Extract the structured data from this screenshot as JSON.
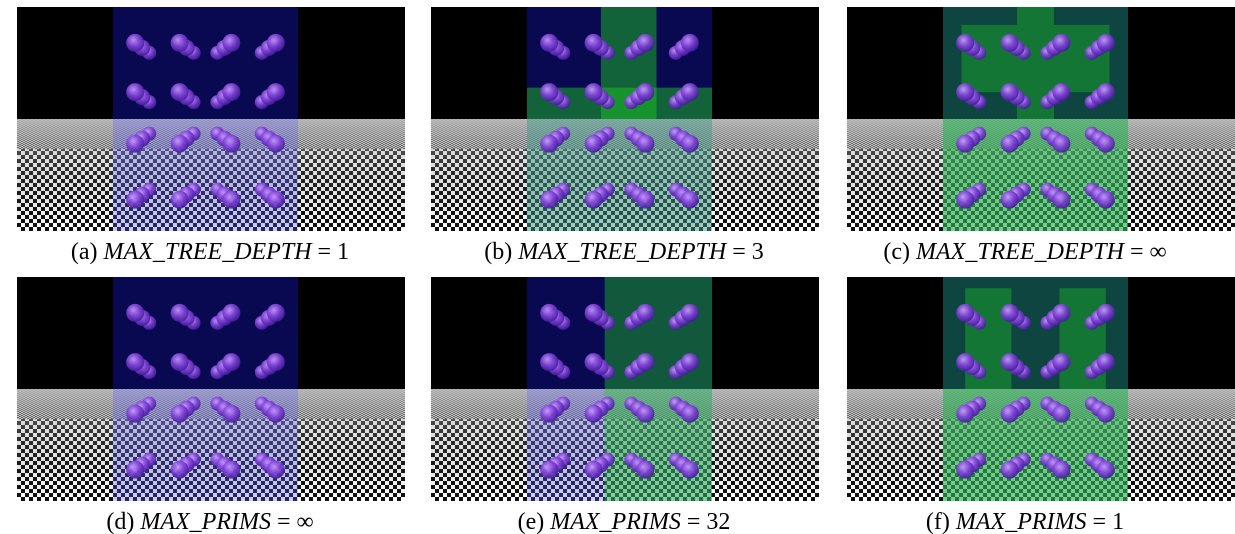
{
  "figure": {
    "panels": [
      {
        "label": "(a)",
        "name": "MAX_TREE_DEPTH",
        "op": "=",
        "value": "1"
      },
      {
        "label": "(b)",
        "name": "MAX_TREE_DEPTH",
        "op": "=",
        "value": "3"
      },
      {
        "label": "(c)",
        "name": "MAX_TREE_DEPTH",
        "op": "=",
        "value": "∞"
      },
      {
        "label": "(d)",
        "name": "MAX_PRIMS",
        "op": "=",
        "value": "∞"
      },
      {
        "label": "(e)",
        "name": "MAX_PRIMS",
        "op": "=",
        "value": "32"
      },
      {
        "label": "(f)",
        "name": "MAX_PRIMS",
        "op": "=",
        "value": "1"
      }
    ]
  }
}
